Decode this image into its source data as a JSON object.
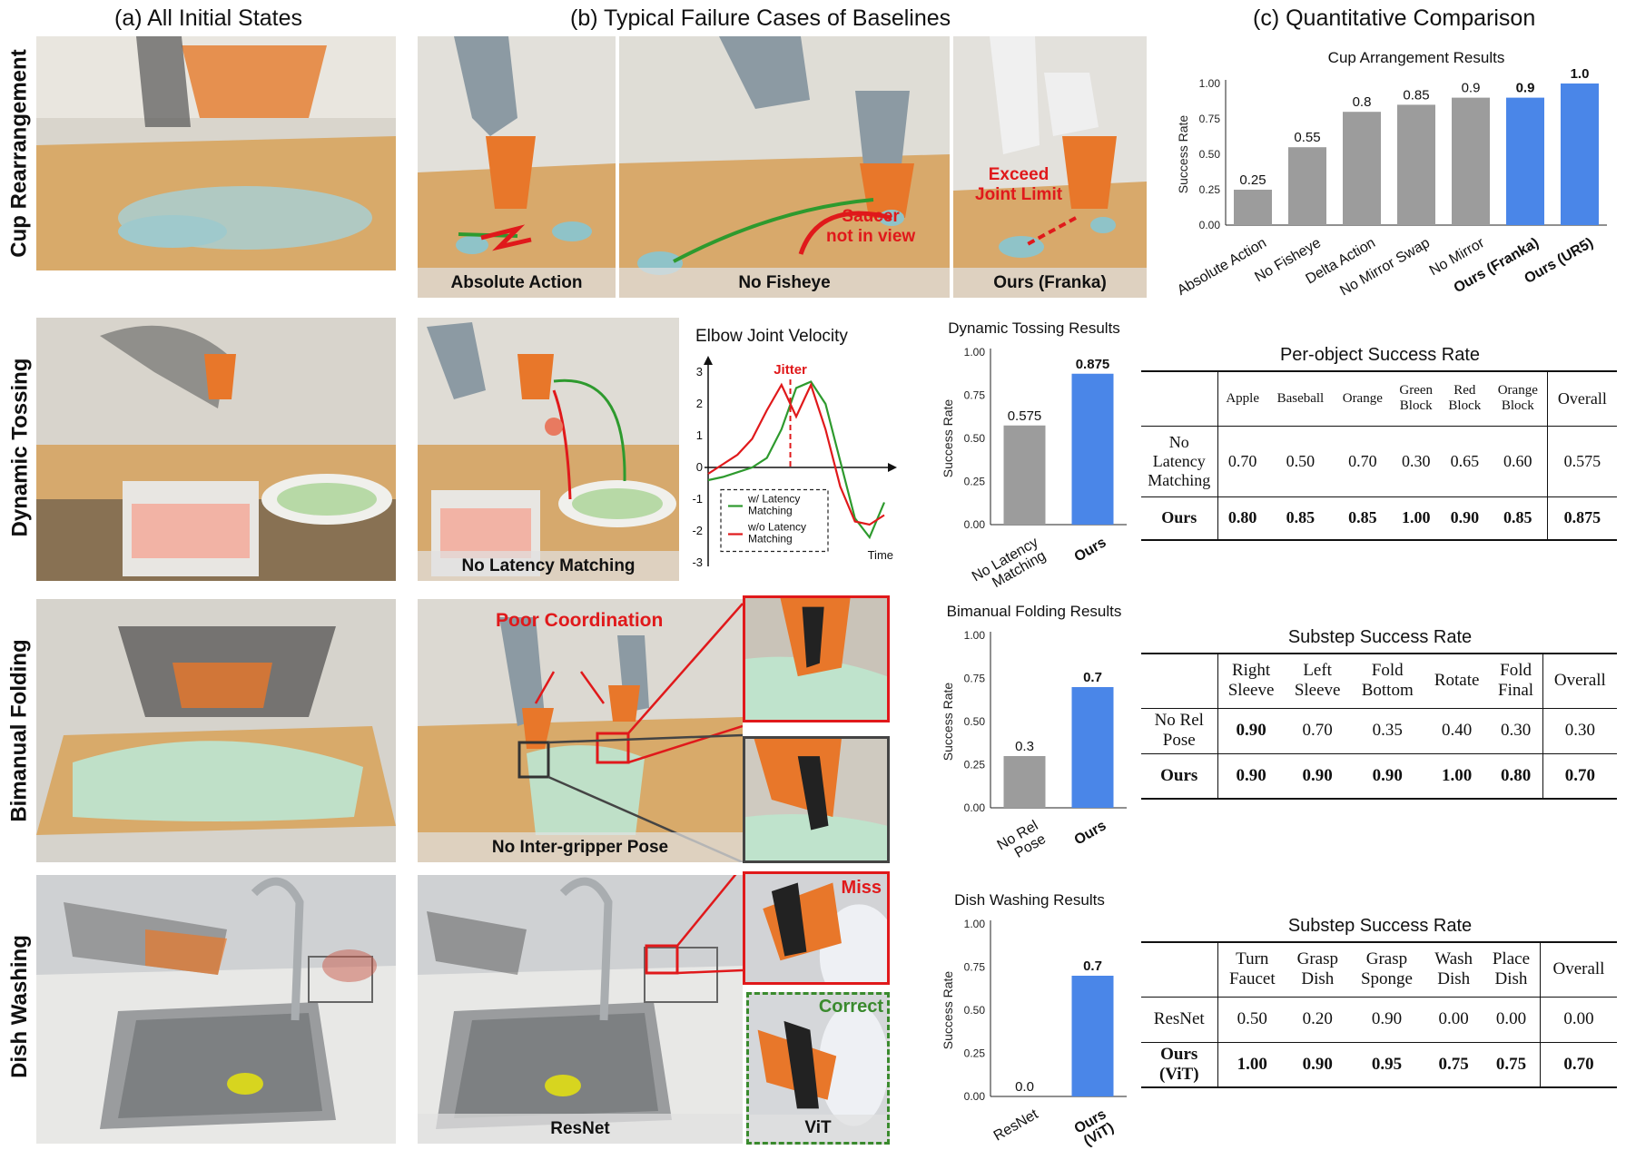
{
  "sections": {
    "a": "(a) All Initial States",
    "b": "(b) Typical Failure Cases of Baselines",
    "c": "(c) Quantitative Comparison"
  },
  "rows": [
    "Cup Rearrangement",
    "Dynamic Tossing",
    "Bimanual Folding",
    "Dish Washing"
  ],
  "captions": {
    "absolute_action": "Absolute Action",
    "no_fisheye": "No Fisheye",
    "ours_franka": "Ours (Franka)",
    "no_latency": "No Latency Matching",
    "no_inter_gripper": "No Inter-gripper Pose",
    "resnet": "ResNet",
    "vit": "ViT"
  },
  "annotations": {
    "saucer": "Saucer\nnot in view",
    "exceed": "Exceed\nJoint Limit",
    "poor_coord": "Poor Coordination",
    "miss": "Miss",
    "correct": "Correct",
    "jitter": "Jitter"
  },
  "colors": {
    "gray": "#9c9c9c",
    "blue": "#4a86e8",
    "red": "#e0191b",
    "green": "#2e9a2e"
  },
  "chart_data": [
    {
      "type": "bar",
      "title": "Cup Arrangement Results",
      "ylabel": "Success Rate",
      "ylim": [
        0,
        1.0
      ],
      "yticks": [
        "0.00",
        "0.25",
        "0.50",
        "0.75",
        "1.00"
      ],
      "categories": [
        "Absolute Action",
        "No Fisheye",
        "Delta Action",
        "No Mirror Swap",
        "No Mirror",
        "Ours (Franka)",
        "Ours (UR5)"
      ],
      "values": [
        0.25,
        0.55,
        0.8,
        0.85,
        0.9,
        0.9,
        1.0
      ],
      "value_labels": [
        "0.25",
        "0.55",
        "0.8",
        "0.85",
        "0.9",
        "0.9",
        "1.0"
      ],
      "highlight": [
        false,
        false,
        false,
        false,
        false,
        true,
        true
      ]
    },
    {
      "type": "bar",
      "title": "Dynamic Tossing Results",
      "ylabel": "Success Rate",
      "ylim": [
        0,
        1.0
      ],
      "yticks": [
        "0.00",
        "0.25",
        "0.50",
        "0.75",
        "1.00"
      ],
      "categories": [
        "No Latency\nMatching",
        "Ours"
      ],
      "values": [
        0.575,
        0.875
      ],
      "value_labels": [
        "0.575",
        "0.875"
      ],
      "highlight": [
        false,
        true
      ]
    },
    {
      "type": "bar",
      "title": "Bimanual Folding Results",
      "ylabel": "Success Rate",
      "ylim": [
        0,
        1.0
      ],
      "yticks": [
        "0.00",
        "0.25",
        "0.50",
        "0.75",
        "1.00"
      ],
      "categories": [
        "No Rel\nPose",
        "Ours"
      ],
      "values": [
        0.3,
        0.7
      ],
      "value_labels": [
        "0.3",
        "0.7"
      ],
      "highlight": [
        false,
        true
      ]
    },
    {
      "type": "bar",
      "title": "Dish Washing Results",
      "ylabel": "Success Rate",
      "ylim": [
        0,
        1.0
      ],
      "yticks": [
        "0.00",
        "0.25",
        "0.50",
        "0.75",
        "1.00"
      ],
      "categories": [
        "ResNet",
        "Ours\n(ViT)"
      ],
      "values": [
        0.0,
        0.7
      ],
      "value_labels": [
        "0.0",
        "0.7"
      ],
      "highlight": [
        false,
        true
      ]
    },
    {
      "type": "line",
      "title": "Elbow Joint Velocity",
      "xlabel": "Time",
      "ylim": [
        -3,
        3
      ],
      "yticks": [
        "3",
        "2",
        "1",
        "0",
        "-1",
        "-2",
        "-3"
      ],
      "series": [
        {
          "name": "w/ Latency\nMatching",
          "x": [
            0,
            1,
            2,
            3,
            4,
            5,
            6,
            7,
            8,
            9,
            10,
            11,
            12
          ],
          "values": [
            -0.4,
            -0.3,
            -0.15,
            0.0,
            0.3,
            1.2,
            2.5,
            2.7,
            2.0,
            0.2,
            -1.6,
            -2.2,
            -1.1
          ]
        },
        {
          "name": "w/o Latency\nMatching",
          "x": [
            0,
            1,
            2,
            3,
            4,
            5,
            6,
            7,
            8,
            9,
            10,
            11,
            12
          ],
          "values": [
            -0.2,
            0.1,
            0.4,
            0.9,
            1.8,
            2.6,
            1.6,
            2.6,
            1.2,
            -0.6,
            -1.7,
            -1.8,
            -1.5
          ]
        }
      ],
      "annotation": {
        "text": "Jitter",
        "x": 5.6
      }
    }
  ],
  "tables": [
    {
      "title": "Per-object Success Rate",
      "headers": [
        "",
        "Apple",
        "Baseball",
        "Orange",
        "Green\nBlock",
        "Red\nBlock",
        "Orange\nBlock",
        "Overall"
      ],
      "rows": [
        {
          "label": "No\nLatency\nMatching",
          "cells": [
            "0.70",
            "0.50",
            "0.70",
            "0.30",
            "0.65",
            "0.60",
            "0.575"
          ],
          "bold": [
            false,
            false,
            false,
            false,
            false,
            false,
            false
          ]
        },
        {
          "label": "Ours",
          "cells": [
            "0.80",
            "0.85",
            "0.85",
            "1.00",
            "0.90",
            "0.85",
            "0.875"
          ],
          "bold": [
            true,
            true,
            true,
            true,
            true,
            true,
            true
          ]
        }
      ]
    },
    {
      "title": "Substep Success Rate",
      "headers": [
        "",
        "Right\nSleeve",
        "Left\nSleeve",
        "Fold\nBottom",
        "Rotate",
        "Fold\nFinal",
        "Overall"
      ],
      "rows": [
        {
          "label": "No Rel\nPose",
          "cells": [
            "0.90",
            "0.70",
            "0.35",
            "0.40",
            "0.30",
            "0.30"
          ],
          "bold": [
            true,
            false,
            false,
            false,
            false,
            false
          ]
        },
        {
          "label": "Ours",
          "cells": [
            "0.90",
            "0.90",
            "0.90",
            "1.00",
            "0.80",
            "0.70"
          ],
          "bold": [
            true,
            true,
            true,
            true,
            true,
            true
          ]
        }
      ]
    },
    {
      "title": "Substep Success Rate",
      "headers": [
        "",
        "Turn\nFaucet",
        "Grasp\nDish",
        "Grasp\nSponge",
        "Wash\nDish",
        "Place\nDish",
        "Overall"
      ],
      "rows": [
        {
          "label": "ResNet",
          "cells": [
            "0.50",
            "0.20",
            "0.90",
            "0.00",
            "0.00",
            "0.00"
          ],
          "bold": [
            false,
            false,
            false,
            false,
            false,
            false
          ]
        },
        {
          "label": "Ours\n(ViT)",
          "cells": [
            "1.00",
            "0.90",
            "0.95",
            "0.75",
            "0.75",
            "0.70"
          ],
          "bold": [
            true,
            true,
            true,
            true,
            true,
            true
          ]
        }
      ]
    }
  ]
}
